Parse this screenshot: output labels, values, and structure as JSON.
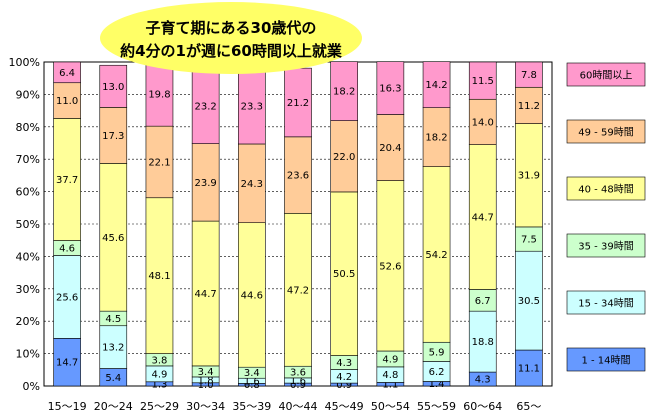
{
  "chart_data": {
    "type": "bar",
    "stacked": true,
    "categories": [
      "15～19",
      "20～24",
      "25～29",
      "30～34",
      "35～39",
      "40～44",
      "45～49",
      "50～54",
      "55～59",
      "60～64",
      "65～"
    ],
    "series": [
      {
        "name": "1 - 14時間",
        "color": "#6699ff",
        "values": [
          14.7,
          5.4,
          1.3,
          1.0,
          0.8,
          0.9,
          0.9,
          1.1,
          1.4,
          4.3,
          11.1
        ]
      },
      {
        "name": "15 - 34時間",
        "color": "#ccffff",
        "values": [
          25.6,
          13.2,
          4.9,
          1.8,
          1.6,
          1.6,
          4.2,
          4.8,
          6.2,
          18.8,
          30.5
        ]
      },
      {
        "name": "35 - 39時間",
        "color": "#ccffcc",
        "values": [
          4.6,
          4.5,
          3.8,
          3.4,
          3.4,
          3.6,
          4.3,
          4.9,
          5.9,
          6.7,
          7.5
        ]
      },
      {
        "name": "40 - 48時間",
        "color": "#ffff99",
        "values": [
          37.7,
          45.6,
          48.1,
          44.7,
          44.6,
          47.2,
          50.5,
          52.6,
          54.2,
          44.7,
          31.9
        ]
      },
      {
        "name": "49 - 59時間",
        "color": "#ffcc99",
        "values": [
          11.0,
          17.3,
          22.1,
          23.9,
          24.3,
          23.6,
          22.0,
          20.4,
          18.2,
          14.0,
          11.2
        ]
      },
      {
        "name": "60時間以上",
        "color": "#ff99cc",
        "values": [
          6.4,
          13.0,
          19.8,
          23.2,
          23.3,
          21.2,
          18.2,
          16.3,
          14.2,
          11.5,
          7.8
        ]
      }
    ],
    "ylim": [
      0,
      100
    ],
    "yticks": [
      "0%",
      "10%",
      "20%",
      "30%",
      "40%",
      "50%",
      "60%",
      "70%",
      "80%",
      "90%",
      "100%"
    ],
    "gridlines": true,
    "legend_position": "right"
  },
  "callout": {
    "line1": "子育て期にある30歳代の",
    "line2": "約4分の1が週に60時間以上就業"
  }
}
